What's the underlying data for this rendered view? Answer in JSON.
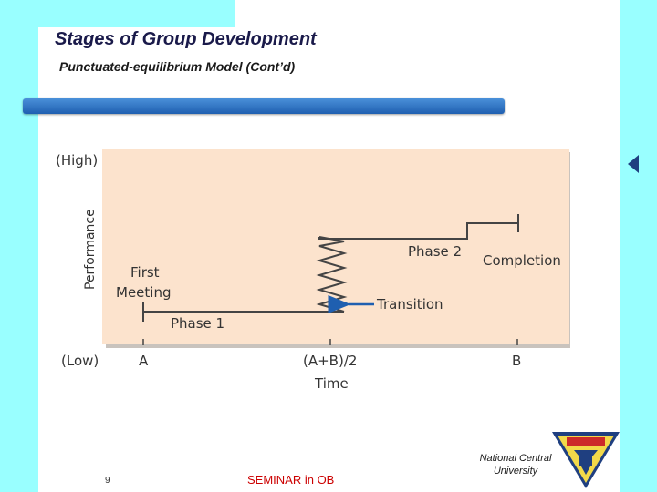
{
  "slide": {
    "title": "Stages of Group Development",
    "subtitle": "Punctuated-equilibrium Model (Cont’d)"
  },
  "diagram": {
    "y_high": "(High)",
    "y_low": "(Low)",
    "y_axis_label": "Performance",
    "x_axis_label": "Time",
    "tick_a": "A",
    "tick_mid": "(A+B)/2",
    "tick_b": "B",
    "label_first_meeting_line1": "First",
    "label_first_meeting_line2": "Meeting",
    "label_phase1": "Phase 1",
    "label_phase2": "Phase 2",
    "label_transition": "Transition",
    "label_completion": "Completion",
    "colors": {
      "panel": "#fce3cd",
      "line": "#444444",
      "arrow": "#1f5fb0"
    }
  },
  "footer": {
    "page_number": "9",
    "seminar": "SEMINAR in OB",
    "university_line1": "National Central",
    "university_line2": "University"
  },
  "logo": {
    "name": "university-seal-icon"
  }
}
